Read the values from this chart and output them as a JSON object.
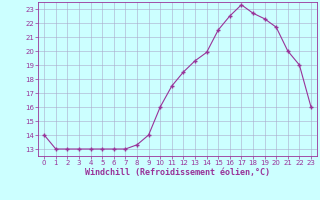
{
  "data_x": [
    0,
    1,
    2,
    3,
    4,
    5,
    6,
    7,
    8,
    9,
    10,
    11,
    12,
    13,
    14,
    15,
    16,
    17,
    18,
    19,
    20,
    21,
    22,
    23
  ],
  "data_y": [
    14,
    13,
    13,
    13,
    13,
    13,
    13,
    13,
    13.3,
    14,
    16,
    17.5,
    18.5,
    19.3,
    19.9,
    21.5,
    22.5,
    23.3,
    22.7,
    22.3,
    21.7,
    20.0,
    19.0,
    16.0
  ],
  "line_color": "#993399",
  "marker": "+",
  "bg_color": "#ccffff",
  "grid_color": "#aaaacc",
  "xlabel": "Windchill (Refroidissement éolien,°C)",
  "xlim": [
    -0.5,
    23.5
  ],
  "ylim": [
    12.5,
    23.5
  ],
  "yticks": [
    13,
    14,
    15,
    16,
    17,
    18,
    19,
    20,
    21,
    22,
    23
  ],
  "xticks": [
    0,
    1,
    2,
    3,
    4,
    5,
    6,
    7,
    8,
    9,
    10,
    11,
    12,
    13,
    14,
    15,
    16,
    17,
    18,
    19,
    20,
    21,
    22,
    23
  ],
  "font_color": "#993399",
  "axis_color": "#993399",
  "tick_fontsize": 5.0,
  "label_fontsize": 6.0,
  "figsize": [
    3.2,
    2.0
  ],
  "dpi": 100
}
